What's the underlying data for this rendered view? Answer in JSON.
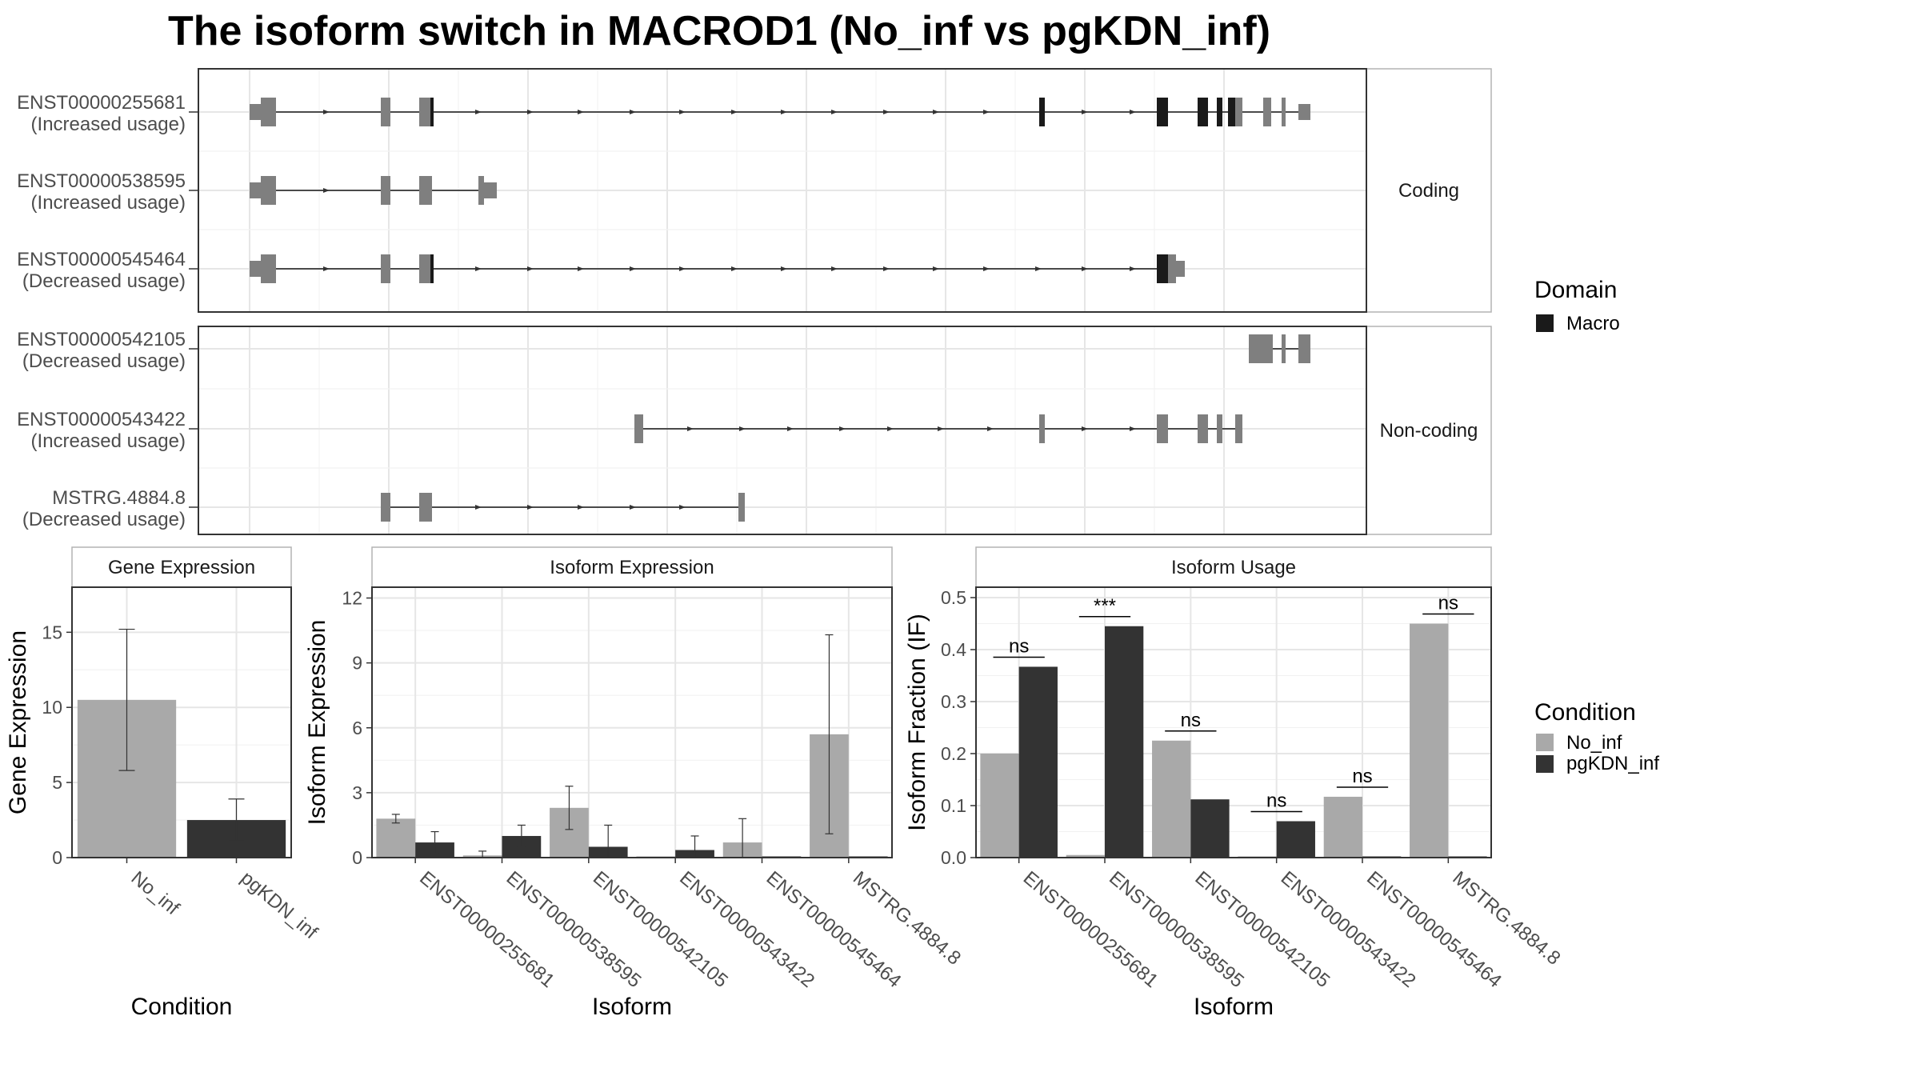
{
  "title": "The isoform switch in MACROD1 (No_inf vs pgKDN_inf)",
  "colors": {
    "no_inf": "#a9a9a9",
    "pgkdn_inf": "#333333",
    "domain": "#1a1a1a",
    "exon": "#7f7f7f"
  },
  "structure": {
    "facets": [
      "Coding",
      "Non-coding"
    ],
    "transcripts": [
      {
        "id": "ENST00000255681",
        "usage": "(Increased usage)",
        "group": 0
      },
      {
        "id": "ENST00000538595",
        "usage": "(Increased usage)",
        "group": 0
      },
      {
        "id": "ENST00000545464",
        "usage": "(Decreased usage)",
        "group": 0
      },
      {
        "id": "ENST00000542105",
        "usage": "(Decreased usage)",
        "group": 1
      },
      {
        "id": "ENST00000543422",
        "usage": "(Increased usage)",
        "group": 1
      },
      {
        "id": "MSTRG.4884.8",
        "usage": "(Decreased usage)",
        "group": 1
      }
    ],
    "legend": {
      "title": "Domain",
      "entries": [
        "Macro"
      ]
    }
  },
  "chart_data": [
    {
      "type": "bar",
      "title": "Gene Expression",
      "xlabel": "Condition",
      "ylabel": "Gene Expression",
      "ylim": [
        0,
        18
      ],
      "yticks": [
        "0",
        "5",
        "10",
        "15"
      ],
      "categories": [
        "No_inf",
        "pgKDN_inf"
      ],
      "values": [
        10.5,
        2.5
      ],
      "error_low": [
        5.8,
        1.1
      ],
      "error_high": [
        15.2,
        3.9
      ]
    },
    {
      "type": "bar",
      "title": "Isoform Expression",
      "xlabel": "Isoform",
      "ylabel": "Isoform Expression",
      "ylim": [
        0,
        12.5
      ],
      "yticks": [
        "0",
        "3",
        "6",
        "9",
        "12"
      ],
      "categories": [
        "ENST00000255681",
        "ENST00000538595",
        "ENST00000542105",
        "ENST00000543422",
        "ENST00000545464",
        "MSTRG.4884.8"
      ],
      "series": [
        {
          "name": "No_inf",
          "values": [
            1.8,
            0.1,
            2.3,
            0.0,
            0.7,
            5.7
          ],
          "error_low": [
            1.6,
            0.0,
            1.3,
            0.0,
            0.0,
            1.1
          ],
          "error_high": [
            2.0,
            0.3,
            3.3,
            0.0,
            1.8,
            10.3
          ]
        },
        {
          "name": "pgKDN_inf",
          "values": [
            0.7,
            1.0,
            0.5,
            0.35,
            0.0,
            0.0
          ],
          "error_low": [
            0.2,
            0.5,
            0.0,
            0.0,
            0.0,
            0.0
          ],
          "error_high": [
            1.2,
            1.5,
            1.5,
            1.0,
            0.0,
            0.0
          ]
        }
      ]
    },
    {
      "type": "bar",
      "title": "Isoform Usage",
      "xlabel": "Isoform",
      "ylabel": "Isoform Fraction (IF)",
      "ylim": [
        0,
        0.52
      ],
      "yticks": [
        "0.0",
        "0.1",
        "0.2",
        "0.3",
        "0.4",
        "0.5"
      ],
      "categories": [
        "ENST00000255681",
        "ENST00000538595",
        "ENST00000542105",
        "ENST00000543422",
        "ENST00000545464",
        "MSTRG.4884.8"
      ],
      "series": [
        {
          "name": "No_inf",
          "values": [
            0.2,
            0.005,
            0.225,
            0.0,
            0.117,
            0.45
          ]
        },
        {
          "name": "pgKDN_inf",
          "values": [
            0.367,
            0.445,
            0.112,
            0.07,
            0.0,
            0.0
          ]
        }
      ],
      "annotations": [
        "ns",
        "***",
        "ns",
        "ns",
        "ns",
        "ns"
      ]
    }
  ],
  "condition_legend": {
    "title": "Condition",
    "entries": [
      "No_inf",
      "pgKDN_inf"
    ]
  }
}
